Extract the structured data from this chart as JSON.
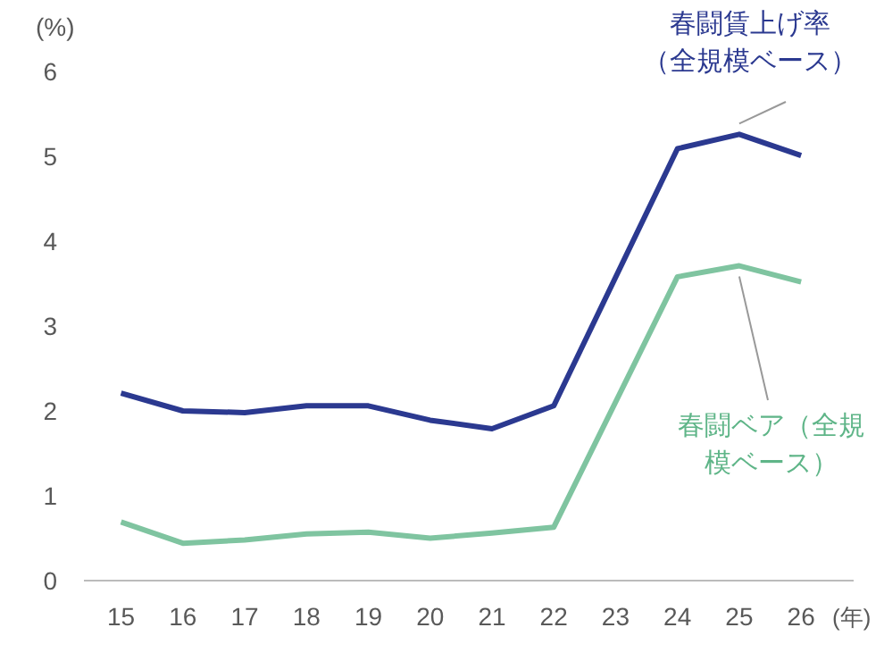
{
  "chart_data": {
    "type": "line",
    "ylabel": "(%)",
    "xlabel": "(年)",
    "x": [
      15,
      16,
      17,
      18,
      19,
      20,
      21,
      22,
      24,
      25,
      26
    ],
    "xlim": [
      14.4,
      26.85
    ],
    "xticks": [
      15,
      16,
      17,
      18,
      19,
      20,
      21,
      22,
      23,
      24,
      25,
      26
    ],
    "ylim": [
      0,
      6
    ],
    "yticks": [
      0,
      1,
      2,
      3,
      4,
      5,
      6
    ],
    "grid": false,
    "legend": false,
    "marker": "none",
    "line_style": "solid",
    "series": [
      {
        "name": "春闘賃上げ率（全規模ベース）",
        "color": "#2b3990",
        "values": [
          2.21,
          2.0,
          1.98,
          2.06,
          2.06,
          1.89,
          1.79,
          2.06,
          5.09,
          5.26,
          5.01
        ]
      },
      {
        "name": "春闘ベア（全規模ベース）",
        "color": "#7fc4a0",
        "values": [
          0.69,
          0.44,
          0.48,
          0.55,
          0.57,
          0.5,
          0.56,
          0.63,
          3.58,
          3.71,
          3.52
        ]
      }
    ]
  }
}
